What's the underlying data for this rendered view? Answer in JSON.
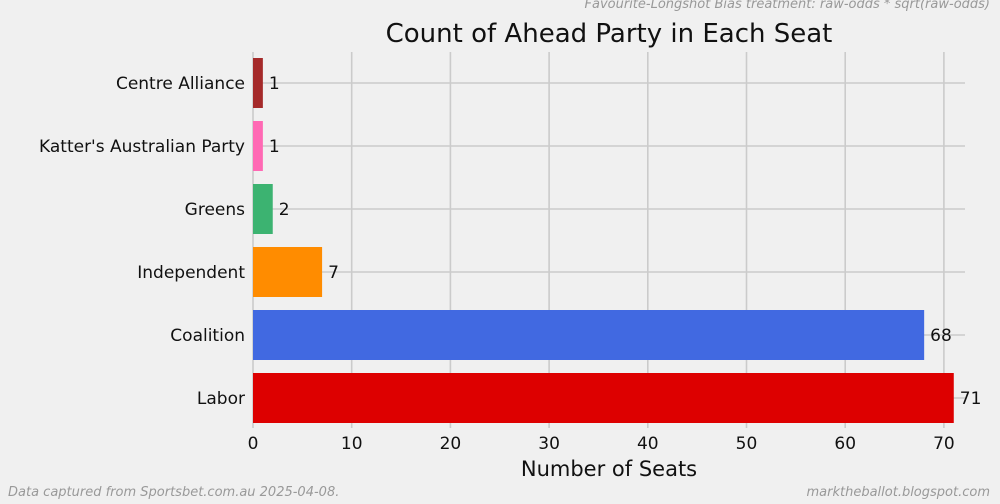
{
  "header_note": "Favourite-Longshot Bias treatment: raw-odds * sqrt(raw-odds)",
  "footer_left": "Data captured from Sportsbet.com.au 2025-04-08.",
  "footer_right": "marktheballot.blogspot.com",
  "chart_data": {
    "type": "bar",
    "orientation": "horizontal",
    "title": "Count of Ahead Party in Each Seat",
    "xlabel": "Number of Seats",
    "ylabel": "",
    "xlim": [
      0,
      72
    ],
    "xticks": [
      0,
      10,
      20,
      30,
      40,
      50,
      60,
      70
    ],
    "grid": true,
    "categories": [
      "Labor",
      "Coalition",
      "Independent",
      "Greens",
      "Katter's Australian Party",
      "Centre Alliance"
    ],
    "values": [
      71,
      68,
      7,
      2,
      1,
      1
    ],
    "colors": [
      "#dd0000",
      "#4169e1",
      "#ff8c00",
      "#3cb371",
      "#ff69b4",
      "#a52a2a"
    ],
    "data_labels": [
      "71",
      "68",
      "7",
      "2",
      "1",
      "1"
    ]
  }
}
